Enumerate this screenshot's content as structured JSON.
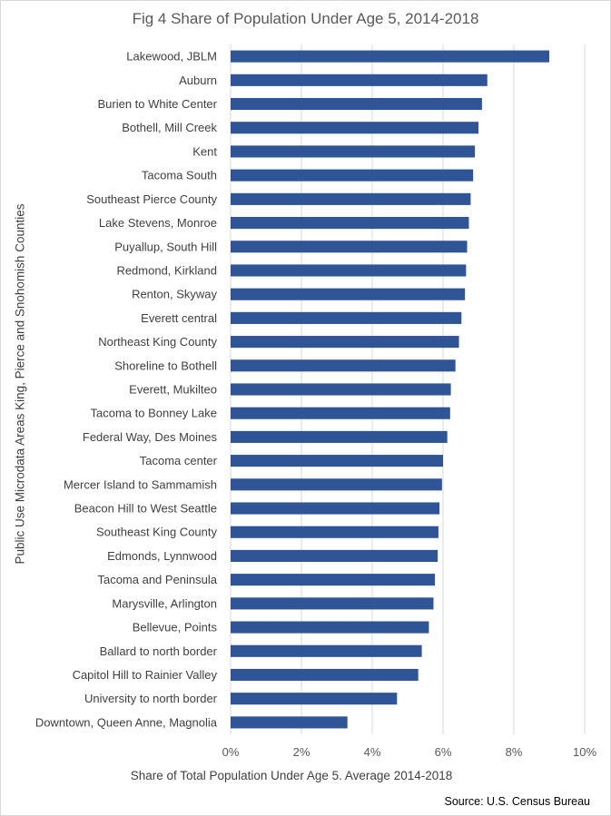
{
  "chart_data": {
    "type": "bar",
    "orientation": "horizontal",
    "title": "Fig 4 Share of Population Under Age 5, 2014-2018",
    "xlabel": "Share of Total Population Under Age 5. Average 2014-2018",
    "ylabel": "Public Use Microdata Areas King, Pierce and Snohomish Counties",
    "xlim": [
      0,
      10
    ],
    "xticks": [
      "0%",
      "2%",
      "4%",
      "6%",
      "8%",
      "10%"
    ],
    "grid": true,
    "bar_color": "#2f5597",
    "categories": [
      "Lakewood, JBLM",
      "Auburn",
      "Burien to White Center",
      "Bothell, Mill  Creek",
      "Kent",
      "Tacoma South",
      "Southeast Pierce County",
      "Lake Stevens, Monroe",
      "Puyallup, South Hill",
      "Redmond, Kirkland",
      "Renton, Skyway",
      "Everett central",
      "Northeast King County",
      "Shoreline to Bothell",
      "Everett, Mukilteo",
      "Tacoma to Bonney Lake",
      "Federal Way, Des Moines",
      "Tacoma center",
      "Mercer Island to Sammamish",
      "Beacon Hill to West Seattle",
      "Southeast King County",
      "Edmonds, Lynnwood",
      "Tacoma and Peninsula",
      "Marysville, Arlington",
      "Bellevue, Points",
      "Ballard to north border",
      "Capitol Hill to Rainier Valley",
      "University to north border",
      "Downtown, Queen Anne, Magnolia"
    ],
    "values": [
      9.0,
      7.25,
      7.1,
      7.0,
      6.9,
      6.85,
      6.78,
      6.73,
      6.68,
      6.65,
      6.62,
      6.52,
      6.45,
      6.35,
      6.22,
      6.2,
      6.12,
      6.0,
      5.97,
      5.9,
      5.87,
      5.85,
      5.77,
      5.73,
      5.6,
      5.4,
      5.3,
      4.7,
      3.3
    ]
  },
  "source": "Source: U.S. Census Bureau"
}
